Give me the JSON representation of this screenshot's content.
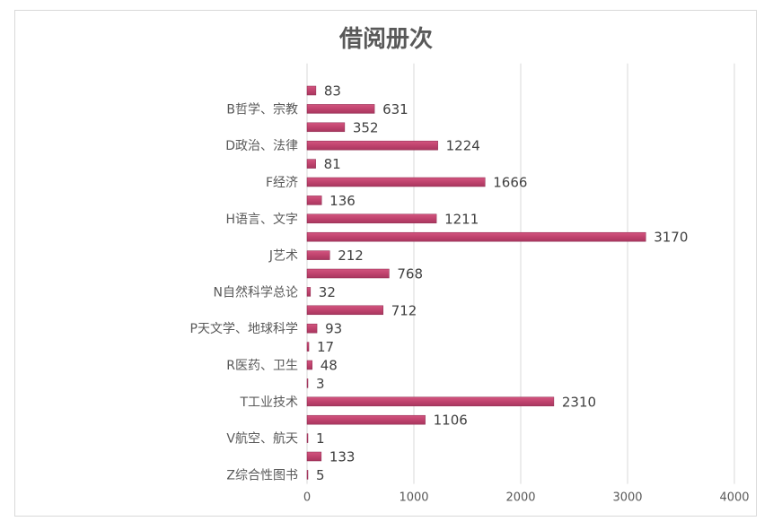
{
  "chart_data": {
    "type": "bar",
    "orientation": "horizontal",
    "title": "借阅册次",
    "xlim": [
      0,
      4000
    ],
    "x_ticks": [
      0,
      1000,
      2000,
      3000,
      4000
    ],
    "grid": true,
    "legend": "none",
    "category_labels": [
      {
        "index": 1,
        "label": "B哲学、宗教"
      },
      {
        "index": 3,
        "label": "D政治、法律"
      },
      {
        "index": 5,
        "label": "F经济"
      },
      {
        "index": 7,
        "label": "H语言、文字"
      },
      {
        "index": 9,
        "label": "J艺术"
      },
      {
        "index": 11,
        "label": "N自然科学总论"
      },
      {
        "index": 13,
        "label": "P天文学、地球科学"
      },
      {
        "index": 15,
        "label": "R医药、卫生"
      },
      {
        "index": 17,
        "label": "T工业技术"
      },
      {
        "index": 19,
        "label": "V航空、航天"
      },
      {
        "index": 21,
        "label": "Z综合性图书"
      }
    ],
    "values": [
      83,
      631,
      352,
      1224,
      81,
      1666,
      136,
      1211,
      3170,
      212,
      768,
      32,
      712,
      93,
      17,
      48,
      3,
      2310,
      1106,
      1,
      133,
      5
    ],
    "bar_color": "#c0436e"
  }
}
